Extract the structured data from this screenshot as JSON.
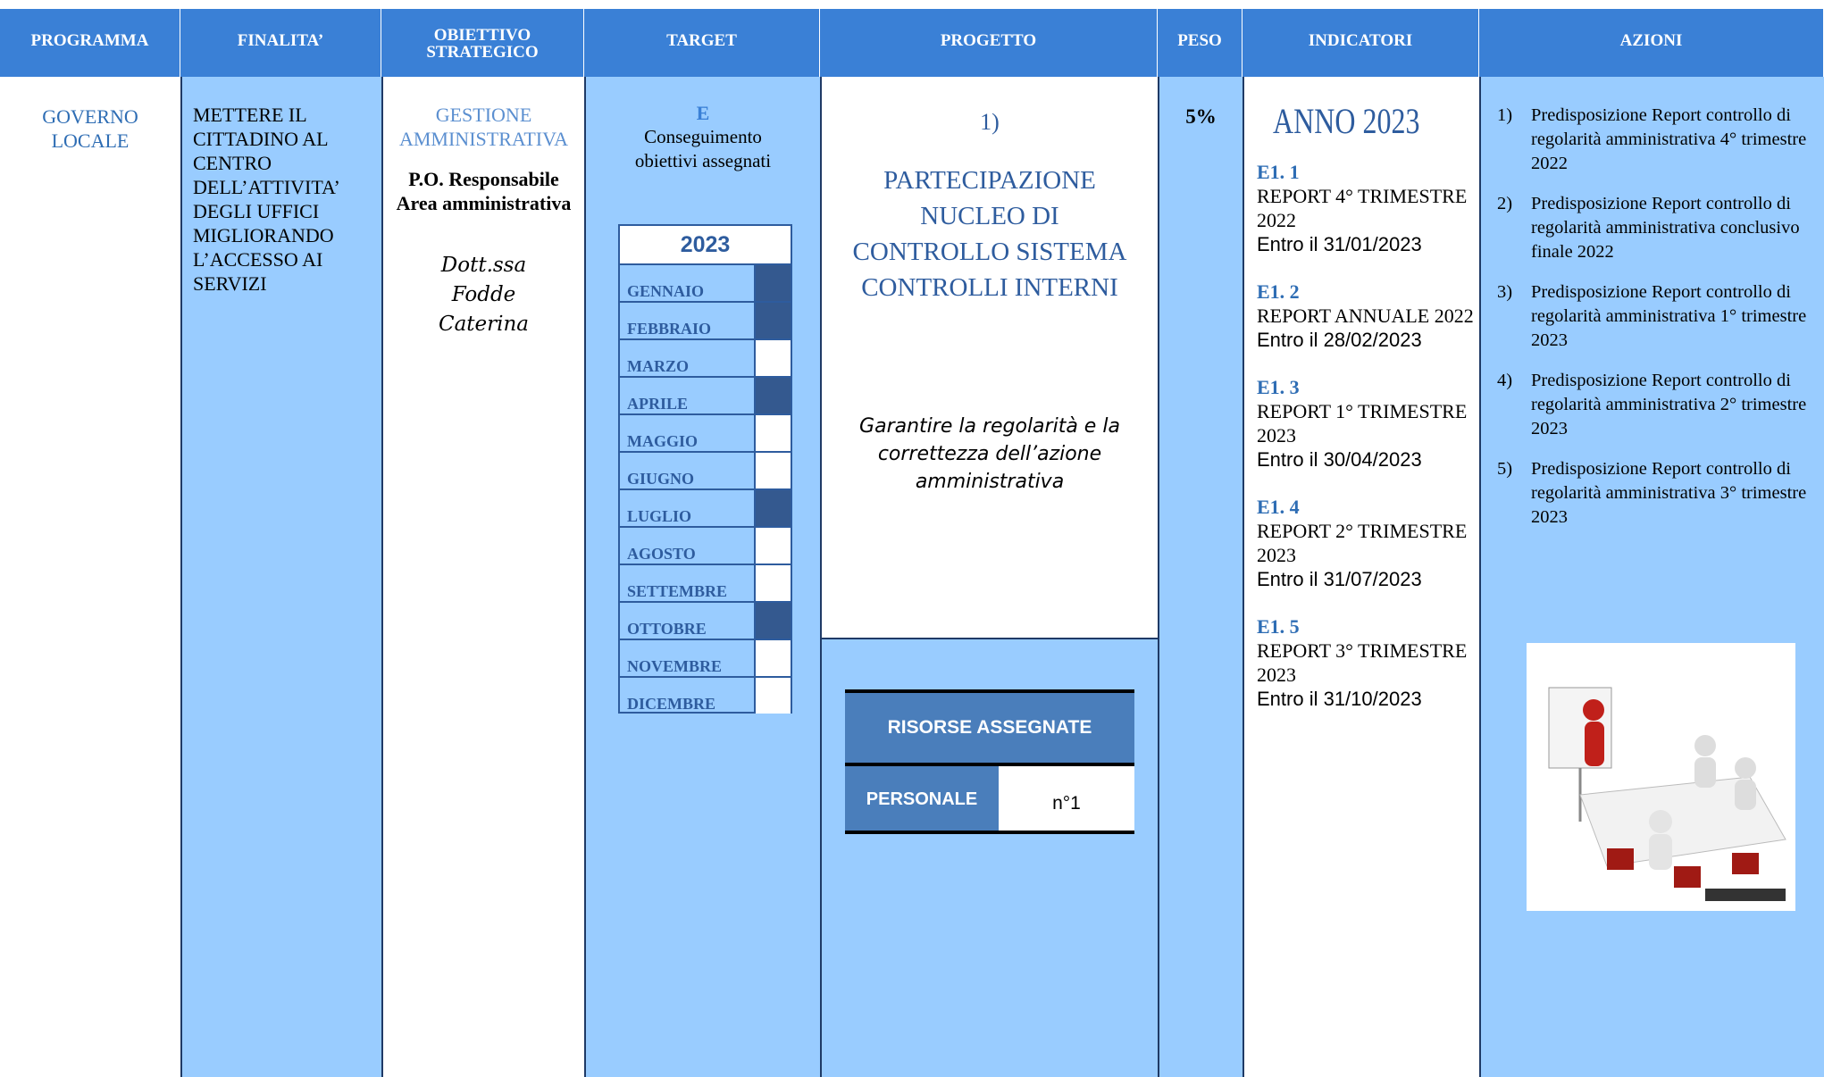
{
  "header": [
    "PROGRAMMA",
    "FINALITA’",
    "OBIETTIVO STRATEGICO",
    "TARGET",
    "PROGETTO",
    "PESO",
    "INDICATORI",
    "AZIONI"
  ],
  "programma": "GOVERNO LOCALE",
  "finalita": "METTERE IL CITTADINO AL CENTRO DELL’ATTIVITA’ DEGLI UFFICI MIGLIORANDO L’ACCESSO AI SERVIZI",
  "obiettivo": {
    "area": "GESTIONE AMMINISTRATIVA",
    "responsabile": "P.O. Responsabile Area amministrativa",
    "nome": "Dott.ssa Fodde Caterina"
  },
  "target": {
    "code": "E",
    "description": "Conseguimento obiettivi assegnati",
    "year": "2023",
    "months": [
      {
        "name": "GENNAIO",
        "active": true
      },
      {
        "name": "FEBBRAIO",
        "active": true
      },
      {
        "name": "MARZO",
        "active": false
      },
      {
        "name": "APRILE",
        "active": true
      },
      {
        "name": "MAGGIO",
        "active": false
      },
      {
        "name": "GIUGNO",
        "active": false
      },
      {
        "name": "LUGLIO",
        "active": true
      },
      {
        "name": "AGOSTO",
        "active": false
      },
      {
        "name": "SETTEMBRE",
        "active": false
      },
      {
        "name": "OTTOBRE",
        "active": true
      },
      {
        "name": "NOVEMBRE",
        "active": false
      },
      {
        "name": "DICEMBRE",
        "active": false
      }
    ]
  },
  "progetto": {
    "number": "1)",
    "title": "PARTECIPAZIONE NUCLEO DI CONTROLLO SISTEMA CONTROLLI INTERNI",
    "goal": "Garantire la regolarità e la correttezza dell’azione amministrativa",
    "resources": {
      "title": "RISORSE ASSEGNATE",
      "label": "PERSONALE",
      "value": "n°1"
    }
  },
  "peso": "5%",
  "indicatori": {
    "title": "ANNO 2023",
    "items": [
      {
        "code": "E1. 1",
        "text": "REPORT 4° TRIMESTRE 2022",
        "deadline": "Entro il 31/01/2023"
      },
      {
        "code": "E1. 2",
        "text": "REPORT ANNUALE 2022",
        "deadline": "Entro il 28/02/2023"
      },
      {
        "code": "E1. 3",
        "text": "REPORT 1° TRIMESTRE 2023",
        "deadline": "Entro il 30/04/2023"
      },
      {
        "code": "E1. 4",
        "text": "REPORT 2° TRIMESTRE 2023",
        "deadline": "Entro il 31/07/2023"
      },
      {
        "code": "E1. 5",
        "text": "REPORT 3° TRIMESTRE 2023",
        "deadline": "Entro il 31/10/2023"
      }
    ]
  },
  "azioni": [
    {
      "number": "1)",
      "text": "Predisposizione Report controllo di regolarità amministrativa 4° trimestre 2022"
    },
    {
      "number": "2)",
      "text": "Predisposizione Report controllo di regolarità amministrativa conclusivo finale 2022"
    },
    {
      "number": "3)",
      "text": "Predisposizione Report controllo di regolarità amministrativa 1° trimestre 2023"
    },
    {
      "number": "4)",
      "text": "Predisposizione Report controllo di regolarità amministrativa 2° trimestre 2023"
    },
    {
      "number": "5)",
      "text": "Predisposizione Report controllo di regolarità amministrativa 3° trimestre 2023"
    }
  ]
}
